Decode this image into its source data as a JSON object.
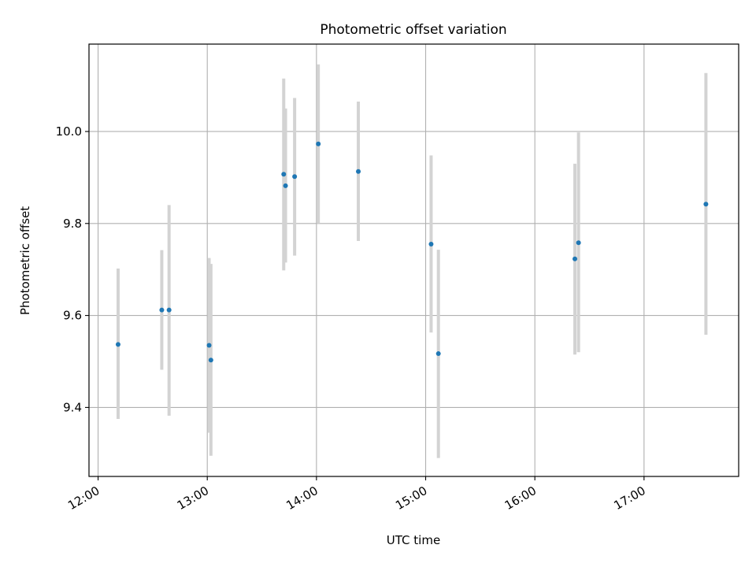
{
  "chart_data": {
    "type": "scatter",
    "title": "Photometric offset variation",
    "xlabel": "UTC time",
    "ylabel": "Photometric offset",
    "x_ticks": [
      "12:00",
      "13:00",
      "14:00",
      "15:00",
      "16:00",
      "17:00"
    ],
    "y_ticks": [
      "9.4",
      "9.6",
      "9.8",
      "10.0"
    ],
    "xlim": [
      "11:55",
      "17:52"
    ],
    "ylim": [
      9.25,
      10.19
    ],
    "grid": true,
    "colors": {
      "point": "#1f77b4",
      "errorbar": "#d3d3d3",
      "grid": "#b0b0b0"
    },
    "series": [
      {
        "points": [
          {
            "x": "12:11",
            "y": 9.537,
            "err_low": 9.375,
            "err_high": 9.702
          },
          {
            "x": "12:35",
            "y": 9.612,
            "err_low": 9.482,
            "err_high": 9.742
          },
          {
            "x": "12:39",
            "y": 9.612,
            "err_low": 9.382,
            "err_high": 9.84
          },
          {
            "x": "13:01",
            "y": 9.535,
            "err_low": 9.345,
            "err_high": 9.725
          },
          {
            "x": "13:02",
            "y": 9.503,
            "err_low": 9.295,
            "err_high": 9.712
          },
          {
            "x": "13:42",
            "y": 9.907,
            "err_low": 9.698,
            "err_high": 10.115
          },
          {
            "x": "13:43",
            "y": 9.882,
            "err_low": 9.715,
            "err_high": 10.05
          },
          {
            "x": "13:48",
            "y": 9.902,
            "err_low": 9.73,
            "err_high": 10.073
          },
          {
            "x": "14:01",
            "y": 9.973,
            "err_low": 9.8,
            "err_high": 10.146
          },
          {
            "x": "14:23",
            "y": 9.913,
            "err_low": 9.762,
            "err_high": 10.065
          },
          {
            "x": "15:03",
            "y": 9.755,
            "err_low": 9.563,
            "err_high": 9.948
          },
          {
            "x": "15:07",
            "y": 9.517,
            "err_low": 9.29,
            "err_high": 9.743
          },
          {
            "x": "16:22",
            "y": 9.723,
            "err_low": 9.515,
            "err_high": 9.93
          },
          {
            "x": "16:24",
            "y": 9.758,
            "err_low": 9.52,
            "err_high": 9.998
          },
          {
            "x": "17:34",
            "y": 9.842,
            "err_low": 9.558,
            "err_high": 10.127
          }
        ]
      }
    ]
  }
}
